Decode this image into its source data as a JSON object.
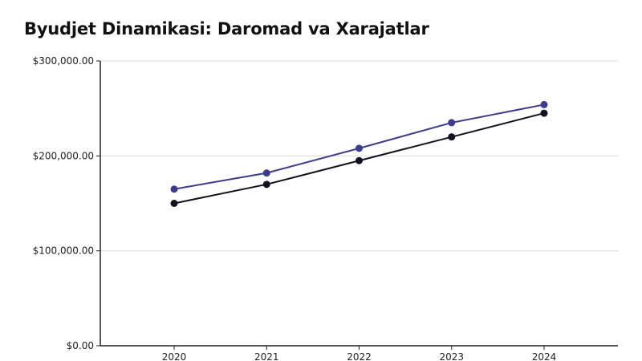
{
  "chart_data": {
    "type": "line",
    "title": "Byudjet Dinamikasi: Daromad va Xarajatlar",
    "xlabel": "",
    "ylabel": "",
    "x": [
      "2020",
      "2021",
      "2022",
      "2023",
      "2024"
    ],
    "ylim": [
      0,
      300000
    ],
    "yticks": [
      0,
      100000,
      200000,
      300000
    ],
    "ytick_labels": [
      "$0.00",
      "$100,000.00",
      "$200,000.00",
      "$300,000.00"
    ],
    "grid": true,
    "series": [
      {
        "values": [
          165000,
          182000,
          208000,
          235000,
          254000
        ],
        "color": "#3b3b8f"
      },
      {
        "values": [
          150000,
          170000,
          195000,
          220000,
          245000
        ],
        "color": "#111122"
      }
    ]
  }
}
